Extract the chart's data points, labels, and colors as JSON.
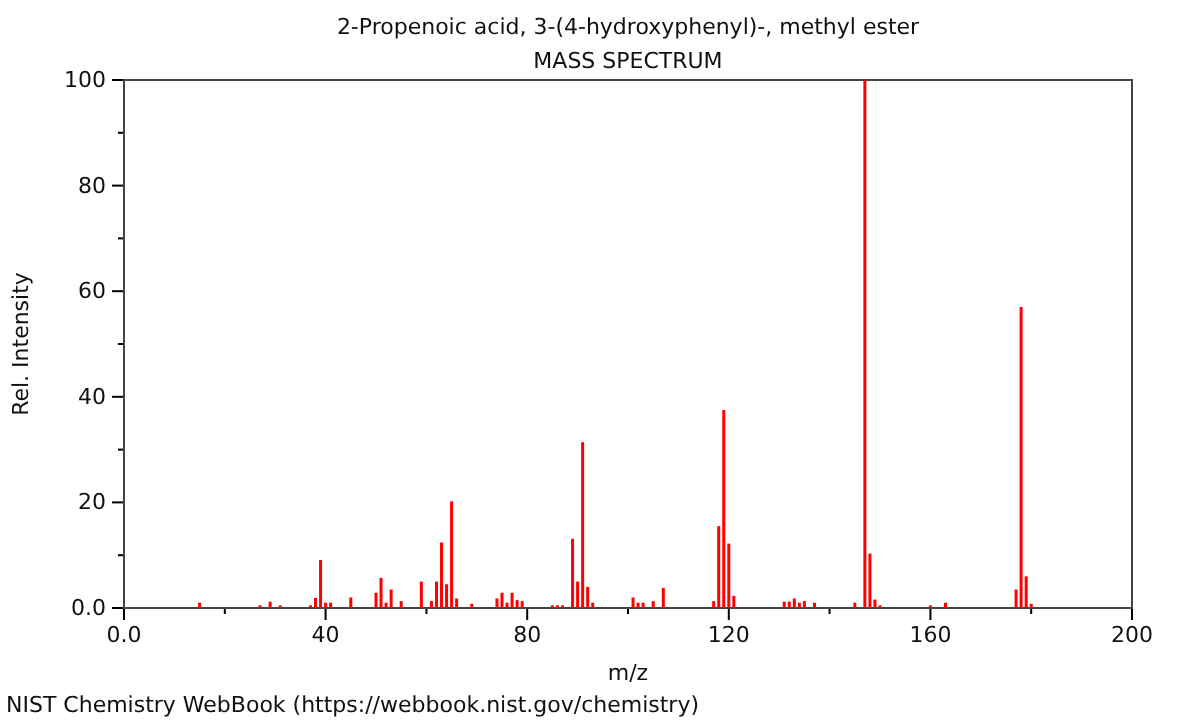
{
  "chart_data": {
    "type": "bar",
    "title": "2-Propenoic acid, 3-(4-hydroxyphenyl)-, methyl ester",
    "subtitle": "MASS SPECTRUM",
    "xlabel": "m/z",
    "ylabel": "Rel. Intensity",
    "annotations": [
      "NIST Chemistry WebBook (https://webbook.nist.gov/chemistry)"
    ],
    "x": [
      15,
      27,
      29,
      31,
      37,
      38,
      39,
      40,
      41,
      45,
      50,
      51,
      52,
      53,
      55,
      59,
      61,
      62,
      63,
      64,
      65,
      66,
      69,
      74,
      75,
      76,
      77,
      78,
      79,
      85,
      86,
      87,
      89,
      90,
      91,
      92,
      93,
      101,
      102,
      103,
      105,
      107,
      117,
      118,
      119,
      120,
      121,
      131,
      132,
      133,
      134,
      135,
      137,
      145,
      147,
      148,
      149,
      150,
      160,
      163,
      177,
      178,
      179,
      180
    ],
    "values": [
      1,
      0.5,
      1.2,
      0.5,
      0.5,
      1.9,
      9.1,
      1,
      1,
      2,
      2.9,
      5.7,
      1,
      3.5,
      1.3,
      5,
      1.3,
      5,
      12.4,
      4.5,
      20.2,
      1.8,
      0.8,
      1.8,
      2.9,
      1,
      2.9,
      1.5,
      1.3,
      0.5,
      0.5,
      0.5,
      13.1,
      5,
      31.4,
      4,
      1,
      2,
      1,
      1,
      1.3,
      3.8,
      1.3,
      15.5,
      37.5,
      12.2,
      2.3,
      1.2,
      1.2,
      1.8,
      1,
      1.3,
      1,
      1,
      100,
      10.3,
      1.6,
      0.5,
      0.5,
      1,
      3.5,
      57,
      6,
      0.8
    ],
    "color": "#ff0000",
    "xlim": [
      0,
      200
    ],
    "xticks": [
      {
        "value": 0,
        "label": "0.0"
      },
      {
        "value": 20,
        "label": null
      },
      40,
      {
        "value": 60,
        "label": null
      },
      80,
      {
        "value": 100,
        "label": null
      },
      120,
      {
        "value": 140,
        "label": null
      },
      160,
      {
        "value": 180,
        "label": null
      },
      200
    ],
    "ylim": [
      0,
      100
    ],
    "yticks": [
      {
        "value": 0,
        "label": "0.0"
      },
      {
        "value": 10,
        "label": null
      },
      20,
      {
        "value": 30,
        "label": null
      },
      40,
      {
        "value": 50,
        "label": null
      },
      60,
      {
        "value": 70,
        "label": null
      },
      80,
      {
        "value": 90,
        "label": null
      },
      100
    ],
    "grid": false
  }
}
